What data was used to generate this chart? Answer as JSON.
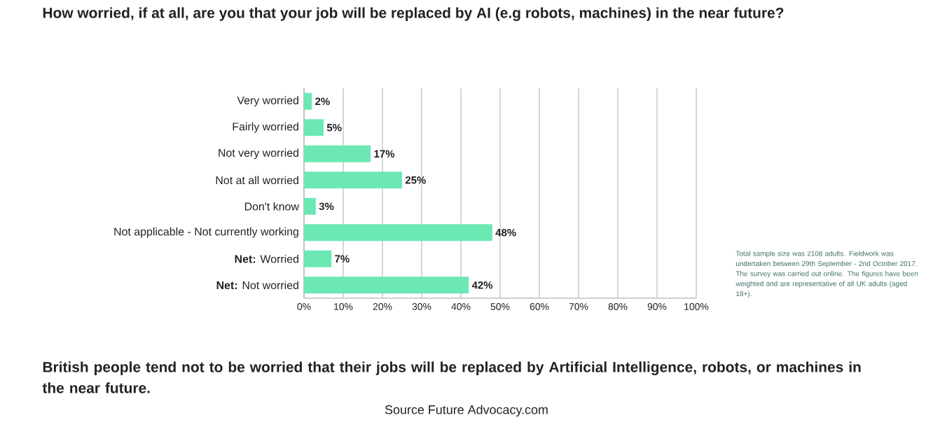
{
  "chart_data": {
    "type": "bar",
    "orientation": "horizontal",
    "title": "How worried, if at all, are you that your job will be replaced by AI (e.g robots, machines) in the near future?",
    "categories": [
      "Very worried",
      "Fairly worried",
      "Not very worried",
      "Not at all worried",
      "Don't know",
      "Not applicable - Not currently working",
      "**Net:** Worried",
      "**Net:** Not worried"
    ],
    "values": [
      2,
      5,
      17,
      25,
      3,
      48,
      7,
      42
    ],
    "value_labels": [
      "2%",
      "5%",
      "17%",
      "25%",
      "3%",
      "48%",
      "7%",
      "42%"
    ],
    "color": "#6ce8b4",
    "xlim": [
      0,
      100
    ],
    "xticks": [
      {
        "value": 0,
        "label": "0%"
      },
      {
        "value": 10,
        "label": "10%"
      },
      {
        "value": 20,
        "label": "20%"
      },
      {
        "value": 30,
        "label": "30%"
      },
      {
        "value": 40,
        "label": "40%"
      },
      {
        "value": 50,
        "label": "50%"
      },
      {
        "value": 60,
        "label": "60%"
      },
      {
        "value": 70,
        "label": "70%"
      },
      {
        "value": 80,
        "label": "80%"
      },
      {
        "value": 90,
        "label": "90%"
      },
      {
        "value": 100,
        "label": "100%"
      }
    ],
    "grid": "x",
    "annotations": [
      "Total sample size was 2108 adults. Fieldwork was undertaken between 29th September - 2nd October 2017. The survey was carried out online. The figures have been weighted and are representative of all UK adults (aged 18+).",
      "British people tend not to be worried that their jobs will be replaced by Artificial Intelligence, robots, or machines in the near future.",
      "Source Future Advocacy.com"
    ]
  }
}
